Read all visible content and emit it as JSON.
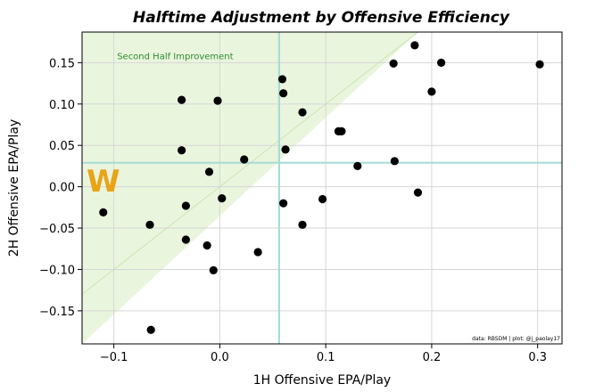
{
  "chart_data": {
    "type": "scatter",
    "title": "Halftime Adjustment by Offensive Efficiency",
    "xlabel": "1H Offensive EPA/Play",
    "ylabel": "2H Offensive EPA/Play",
    "xlim": [
      -0.13,
      0.323
    ],
    "ylim": [
      -0.19,
      0.187
    ],
    "xticks": [
      -0.1,
      0.0,
      0.1,
      0.2,
      0.3
    ],
    "xtick_labels": [
      "−0.1",
      "0.0",
      "0.1",
      "0.2",
      "0.3"
    ],
    "yticks": [
      -0.15,
      -0.1,
      -0.05,
      0.0,
      0.05,
      0.1,
      0.15
    ],
    "ytick_labels": [
      "−0.15",
      "−0.10",
      "−0.05",
      "0.00",
      "0.05",
      "0.10",
      "0.15"
    ],
    "grid": true,
    "reference_lines": {
      "x": 0.056,
      "y": 0.029,
      "color": "#a8dcd6"
    },
    "shaded_region": {
      "label": "Second Half Improvement",
      "color": "#eaf5de",
      "boundary_color": "#c4e2a6",
      "rule": "y > x"
    },
    "highlight_label": {
      "text": "W",
      "color": "#e8a417",
      "x": -0.11,
      "y": 0.007
    },
    "point_color": "#000000",
    "points": [
      {
        "x": -0.11,
        "y": -0.031
      },
      {
        "x": -0.066,
        "y": -0.046
      },
      {
        "x": -0.065,
        "y": -0.173
      },
      {
        "x": -0.036,
        "y": 0.105
      },
      {
        "x": -0.036,
        "y": 0.044
      },
      {
        "x": -0.032,
        "y": -0.023
      },
      {
        "x": -0.032,
        "y": -0.064
      },
      {
        "x": -0.012,
        "y": -0.071
      },
      {
        "x": -0.01,
        "y": 0.018
      },
      {
        "x": -0.006,
        "y": -0.101
      },
      {
        "x": -0.002,
        "y": 0.104
      },
      {
        "x": 0.002,
        "y": -0.014
      },
      {
        "x": 0.023,
        "y": 0.033
      },
      {
        "x": 0.036,
        "y": -0.079
      },
      {
        "x": 0.059,
        "y": 0.13
      },
      {
        "x": 0.06,
        "y": 0.113
      },
      {
        "x": 0.06,
        "y": -0.02
      },
      {
        "x": 0.062,
        "y": 0.045
      },
      {
        "x": 0.078,
        "y": 0.09
      },
      {
        "x": 0.078,
        "y": -0.046
      },
      {
        "x": 0.097,
        "y": -0.015
      },
      {
        "x": 0.112,
        "y": 0.067
      },
      {
        "x": 0.115,
        "y": 0.067
      },
      {
        "x": 0.13,
        "y": 0.025
      },
      {
        "x": 0.164,
        "y": 0.149
      },
      {
        "x": 0.165,
        "y": 0.031
      },
      {
        "x": 0.184,
        "y": 0.171
      },
      {
        "x": 0.187,
        "y": -0.007
      },
      {
        "x": 0.2,
        "y": 0.115
      },
      {
        "x": 0.209,
        "y": 0.15
      },
      {
        "x": 0.302,
        "y": 0.148
      }
    ],
    "credit": "data: RBSDM | plot: @j_paolay17"
  }
}
